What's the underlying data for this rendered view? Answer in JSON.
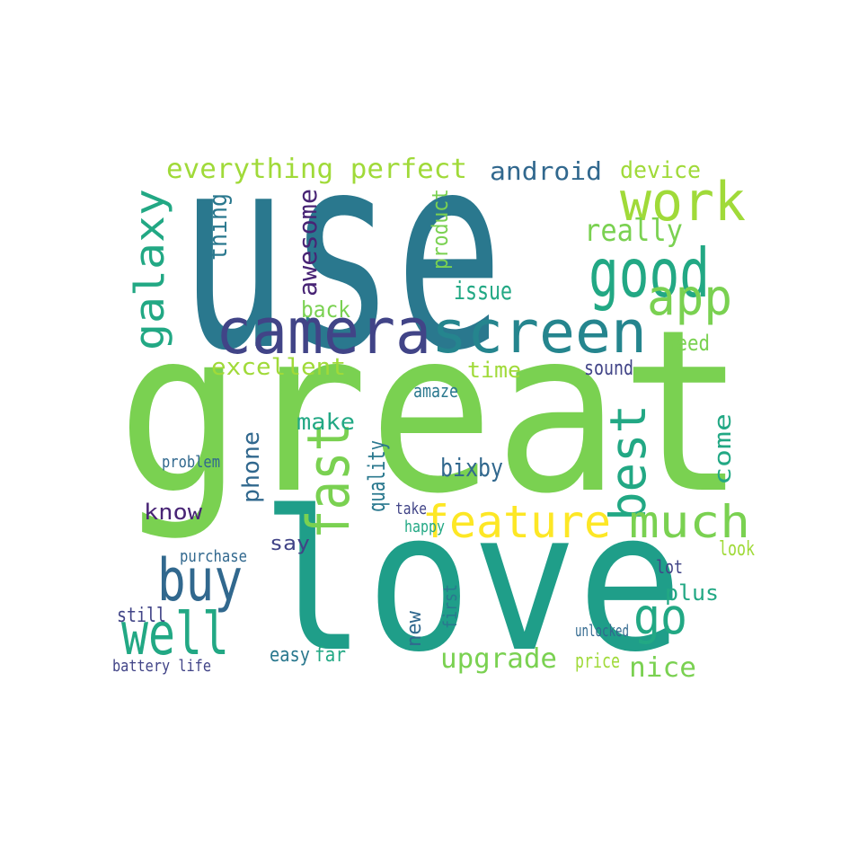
{
  "words": [
    {
      "text": "use",
      "color": "#2a788e"
    },
    {
      "text": "great",
      "color": "#7ad151"
    },
    {
      "text": "love",
      "color": "#1f9e89"
    },
    {
      "text": "camera",
      "color": "#414487"
    },
    {
      "text": "screen",
      "color": "#25858e"
    },
    {
      "text": "galaxy",
      "color": "#22a884"
    },
    {
      "text": "good",
      "color": "#22a884"
    },
    {
      "text": "work",
      "color": "#a0da39"
    },
    {
      "text": "app",
      "color": "#7ad151"
    },
    {
      "text": "everything perfect",
      "color": "#a0da39"
    },
    {
      "text": "android",
      "color": "#31688e"
    },
    {
      "text": "device",
      "color": "#a0da39"
    },
    {
      "text": "really",
      "color": "#7ad151"
    },
    {
      "text": "thing",
      "color": "#2a788e"
    },
    {
      "text": "awesome",
      "color": "#482475"
    },
    {
      "text": "product",
      "color": "#7ad151"
    },
    {
      "text": "back",
      "color": "#7ad151"
    },
    {
      "text": "issue",
      "color": "#22a884"
    },
    {
      "text": "excellent",
      "color": "#a0da39"
    },
    {
      "text": "time",
      "color": "#a0da39"
    },
    {
      "text": "need",
      "color": "#7ad151"
    },
    {
      "text": "best",
      "color": "#22a884"
    },
    {
      "text": "feature",
      "color": "#fde725"
    },
    {
      "text": "much",
      "color": "#7ad151"
    },
    {
      "text": "fast",
      "color": "#7ad151"
    },
    {
      "text": "buy",
      "color": "#31688e"
    },
    {
      "text": "well",
      "color": "#22a884"
    },
    {
      "text": "go",
      "color": "#22a884"
    },
    {
      "text": "upgrade",
      "color": "#7ad151"
    },
    {
      "text": "nice",
      "color": "#7ad151"
    },
    {
      "text": "bixby",
      "color": "#31688e"
    },
    {
      "text": "make",
      "color": "#22a884"
    },
    {
      "text": "quality",
      "color": "#2a788e"
    },
    {
      "text": "phone",
      "color": "#31688e"
    },
    {
      "text": "come",
      "color": "#22a884"
    },
    {
      "text": "know",
      "color": "#482475"
    },
    {
      "text": "say",
      "color": "#414487"
    },
    {
      "text": "purchase",
      "color": "#31688e"
    },
    {
      "text": "still",
      "color": "#414487"
    },
    {
      "text": "look",
      "color": "#a0da39"
    },
    {
      "text": "plus",
      "color": "#22a884"
    },
    {
      "text": "battery life",
      "color": "#414487"
    },
    {
      "text": "easy",
      "color": "#2a788e"
    },
    {
      "text": "far",
      "color": "#22a884"
    },
    {
      "text": "price",
      "color": "#a0da39"
    },
    {
      "text": "sound",
      "color": "#414487"
    },
    {
      "text": "amaze",
      "color": "#2a788e"
    },
    {
      "text": "lot",
      "color": "#414487"
    },
    {
      "text": "problem",
      "color": "#31688e"
    },
    {
      "text": "take",
      "color": "#414487"
    },
    {
      "text": "happy",
      "color": "#22a884"
    },
    {
      "text": "new",
      "color": "#31688e"
    },
    {
      "text": "first",
      "color": "#2a788e"
    },
    {
      "text": "unlocked",
      "color": "#31688e"
    }
  ]
}
